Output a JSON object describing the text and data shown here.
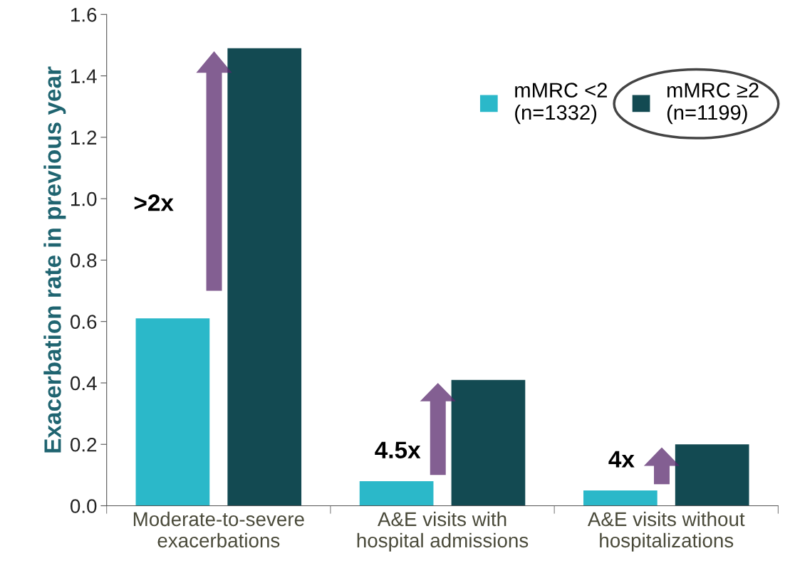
{
  "chart_data": {
    "type": "bar",
    "ylabel": "Exacerbation rate in previous year",
    "categories": [
      "Moderate-to-severe\nexacerbations",
      "A&E visits with\nhospital admissions",
      "A&E visits without\nhospitalizations"
    ],
    "series": [
      {
        "name": "mMRC <2\n(n=1332)",
        "color": "#2bb8c9",
        "values": [
          0.61,
          0.08,
          0.05
        ]
      },
      {
        "name": "mMRC ≥2\n(n=1199)",
        "color": "#134a52",
        "values": [
          1.49,
          0.41,
          0.2
        ]
      }
    ],
    "ylim": [
      0,
      1.6
    ],
    "yticks": [
      "0.0",
      0.2,
      0.4,
      0.6,
      0.8,
      "1.0",
      1.2,
      1.4,
      1.6
    ],
    "annotations": [
      ">2x",
      "4.5x",
      "4x"
    ],
    "legend": "top right",
    "grid": false
  }
}
